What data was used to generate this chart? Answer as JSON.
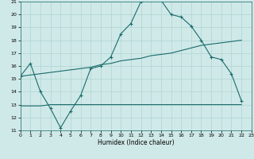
{
  "title": "",
  "xlabel": "Humidex (Indice chaleur)",
  "xlim": [
    0,
    23
  ],
  "ylim": [
    11,
    21
  ],
  "xticks": [
    0,
    1,
    2,
    3,
    4,
    5,
    6,
    7,
    8,
    9,
    10,
    11,
    12,
    13,
    14,
    15,
    16,
    17,
    18,
    19,
    20,
    21,
    22,
    23
  ],
  "yticks": [
    11,
    12,
    13,
    14,
    15,
    16,
    17,
    18,
    19,
    20,
    21
  ],
  "bg_color": "#cfe9e8",
  "grid_color": "#afd4d2",
  "line_color": "#1a6b6b",
  "line1_x": [
    0,
    1,
    2,
    3,
    4,
    5,
    6,
    7,
    8,
    9,
    10,
    11,
    12,
    13,
    14,
    15,
    16,
    17,
    18,
    19,
    20,
    21,
    22
  ],
  "line1_y": [
    15.2,
    16.2,
    14.0,
    12.7,
    11.2,
    12.5,
    13.7,
    15.8,
    16.0,
    16.7,
    18.5,
    19.3,
    21.0,
    21.1,
    21.1,
    20.0,
    19.8,
    19.1,
    18.0,
    16.7,
    16.5,
    15.4,
    13.3
  ],
  "line2_x": [
    0,
    1,
    2,
    3,
    4,
    5,
    6,
    7,
    8,
    9,
    10,
    11,
    12,
    13,
    14,
    15,
    16,
    17,
    18,
    19,
    20,
    21,
    22
  ],
  "line2_y": [
    15.2,
    15.3,
    15.4,
    15.5,
    15.6,
    15.7,
    15.8,
    15.9,
    16.1,
    16.2,
    16.4,
    16.5,
    16.6,
    16.8,
    16.9,
    17.0,
    17.2,
    17.4,
    17.6,
    17.7,
    17.8,
    17.9,
    18.0
  ],
  "line3_x": [
    0,
    1,
    2,
    3,
    4,
    5,
    6,
    7,
    8,
    9,
    10,
    11,
    12,
    13,
    14,
    15,
    16,
    17,
    18,
    19,
    20,
    21,
    22
  ],
  "line3_y": [
    12.9,
    12.9,
    12.9,
    13.0,
    13.0,
    13.0,
    13.0,
    13.0,
    13.0,
    13.0,
    13.0,
    13.0,
    13.0,
    13.0,
    13.0,
    13.0,
    13.0,
    13.0,
    13.0,
    13.0,
    13.0,
    13.0,
    13.0
  ]
}
